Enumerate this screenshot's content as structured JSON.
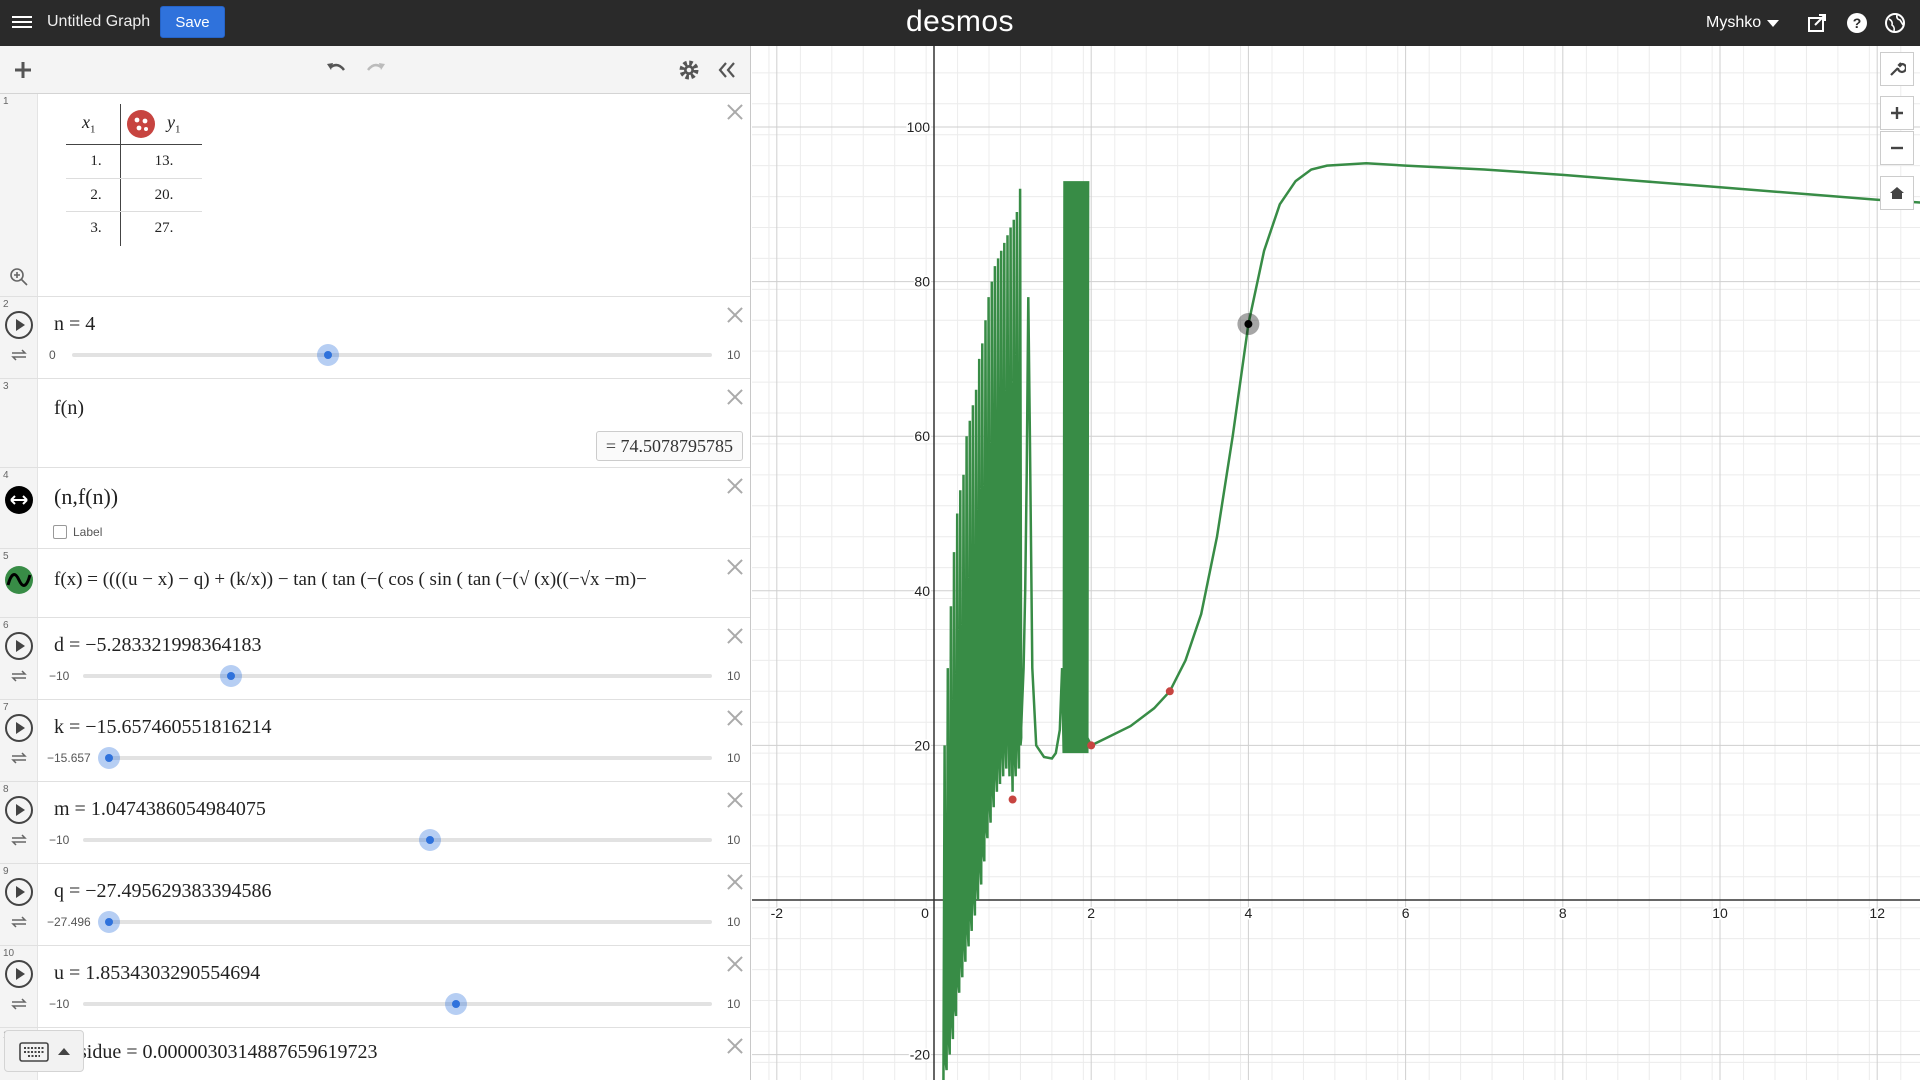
{
  "topbar": {
    "title": "Untitled Graph",
    "save_label": "Save",
    "logo": "desmos",
    "user": "Myshko"
  },
  "toolbar": {
    "icons": [
      "add-icon",
      "undo-icon",
      "redo-icon",
      "gear-icon",
      "collapse-icon"
    ]
  },
  "expressions": {
    "e1": {
      "index": "1",
      "table": {
        "col1_header": "x",
        "col1_sub": "1",
        "col2_header": "y",
        "col2_sub": "1",
        "rows": [
          {
            "x": "1.",
            "y": "13."
          },
          {
            "x": "2.",
            "y": "20."
          },
          {
            "x": "3.",
            "y": "27."
          }
        ]
      }
    },
    "e2": {
      "index": "2",
      "latex": "n = 4",
      "slider": {
        "min": "0",
        "max": "10",
        "value": 4,
        "fraction": 0.4
      }
    },
    "e3": {
      "index": "3",
      "latex": "f(n)",
      "result": "=  74.5078795785"
    },
    "e4": {
      "index": "4",
      "latex": "(n,f(n))",
      "label_text": "Label"
    },
    "e5": {
      "index": "5",
      "latex": "f(x) = ((((u − x) − q) + (k/x)) − tan ( tan (−( cos ( sin ( tan (−(√ (x)((−√x  −m)−"
    },
    "e6": {
      "index": "6",
      "latex": "d = −5.283321998364183",
      "slider": {
        "min": "−10",
        "max": "10",
        "value": -5.283321998364183,
        "fraction": 0.2358
      }
    },
    "e7": {
      "index": "7",
      "latex": "k = −15.657460551816214",
      "slider": {
        "min": "−15.657",
        "max": "10",
        "value": -15.657460551816214,
        "fraction": 0.0
      }
    },
    "e8": {
      "index": "8",
      "latex": "m = 1.0474386054984075",
      "slider": {
        "min": "−10",
        "max": "10",
        "value": 1.0474386054984075,
        "fraction": 0.5524
      }
    },
    "e9": {
      "index": "9",
      "latex": "q = −27.495629383394586",
      "slider": {
        "min": "−27.496",
        "max": "10",
        "value": -27.495629383394586,
        "fraction": 0.0
      }
    },
    "e10": {
      "index": "10",
      "latex": "u = 1.8534303290554694",
      "slider": {
        "min": "−10",
        "max": "10",
        "value": 1.8534303290554694,
        "fraction": 0.5927
      }
    },
    "e11": {
      "index": "11",
      "latex": "sidue = 0.0000030314887659619723"
    }
  },
  "graph": {
    "x_ticks": [
      "-2",
      "0",
      "2",
      "4",
      "6",
      "8",
      "10",
      "12"
    ],
    "y_ticks": [
      "100",
      "80",
      "60",
      "40",
      "20",
      "-20"
    ],
    "curve_color": "#388c46",
    "point_color": "#c74440",
    "table_points": [
      [
        1,
        13
      ],
      [
        2,
        20
      ],
      [
        3,
        27
      ]
    ],
    "moving_point": [
      4,
      74.5078795785
    ]
  }
}
